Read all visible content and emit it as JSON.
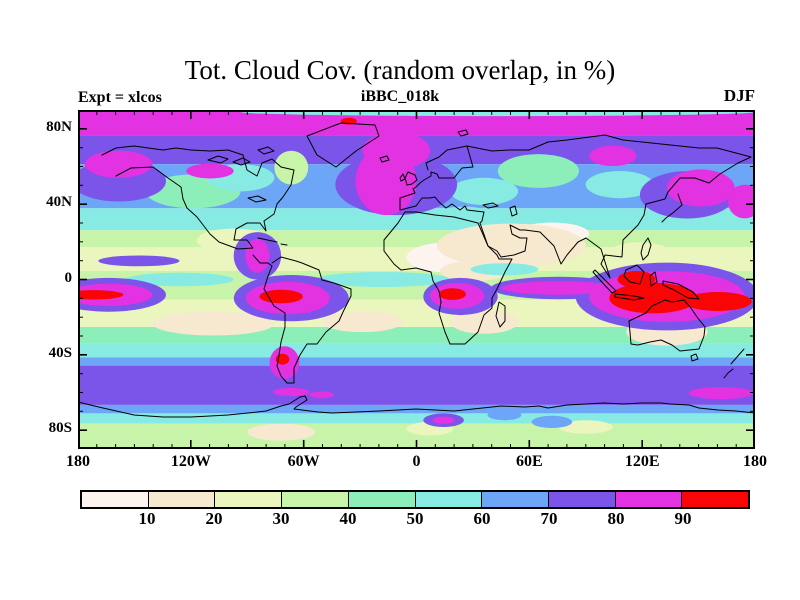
{
  "header": {
    "title": "Tot. Cloud Cov. (random overlap, in %)",
    "subtitle": "iBBC_018k",
    "experiment_label": "Expt = xlcos",
    "season_label": "DJF"
  },
  "chart_data": {
    "type": "heatmap",
    "subtype": "filled-contour global map (equirectangular lat-lon)",
    "title": "Tot. Cloud Cov. (random overlap, in %)",
    "run_id": "iBBC_018k",
    "experiment": "Expt = xlcos",
    "season": "DJF",
    "units": "%",
    "lon_range": [
      -180,
      180
    ],
    "lat_range": [
      -90,
      90
    ],
    "axes": {
      "lon_labels": [
        {
          "text": "180",
          "lon": -180
        },
        {
          "text": "120W",
          "lon": -120
        },
        {
          "text": "60W",
          "lon": -60
        },
        {
          "text": "0",
          "lon": 0
        },
        {
          "text": "60E",
          "lon": 60
        },
        {
          "text": "120E",
          "lon": 120
        },
        {
          "text": "180",
          "lon": 180
        }
      ],
      "lat_labels": [
        {
          "text": "80N",
          "lat": 80
        },
        {
          "text": "40N",
          "lat": 40
        },
        {
          "text": "0",
          "lat": 0
        },
        {
          "text": "40S",
          "lat": -40
        },
        {
          "text": "80S",
          "lat": -80
        }
      ],
      "minor_tick_step_deg": 10,
      "lon_major_step_deg": 60,
      "lat_major_step_deg": 40
    },
    "colorbar": {
      "tick_labels": [
        "10",
        "20",
        "30",
        "40",
        "50",
        "60",
        "70",
        "80",
        "90"
      ],
      "levels_pct": [
        0,
        10,
        20,
        30,
        40,
        50,
        60,
        70,
        80,
        90,
        100
      ],
      "colors": [
        "#fdf4ef",
        "#f6e9cf",
        "#eaf6bd",
        "#c8f4aa",
        "#8cefb9",
        "#87ebe3",
        "#6da6f6",
        "#7b54ea",
        "#e232e2",
        "#fa0505"
      ]
    },
    "field": {
      "description": "DJF total cloud cover (%): >80% (magenta) polar cap band near 80N and over N Atlantic/NW Pacific storm tracks; 70-80% (purple) band over the Southern Ocean 45-65S; >90% (red) convective cores over the Amazon, Congo, Maritime Continent/west Pacific and at the dateline on the equator, plus Patagonia; <20% (cream/white) over the Sahara, Arabia, central Asia and the subtropical oceans.",
      "bands": [
        [
          0.0,
          0.075,
          8
        ],
        [
          0.075,
          0.16,
          7
        ],
        [
          0.16,
          0.29,
          6
        ],
        [
          0.29,
          0.355,
          5
        ],
        [
          0.355,
          0.405,
          3
        ],
        [
          0.405,
          0.475,
          2
        ],
        [
          0.475,
          0.56,
          3
        ],
        [
          0.56,
          0.64,
          2
        ],
        [
          0.64,
          0.69,
          4
        ],
        [
          0.69,
          0.73,
          5
        ],
        [
          0.73,
          0.755,
          6
        ],
        [
          0.755,
          0.87,
          7
        ],
        [
          0.87,
          0.895,
          6
        ],
        [
          0.895,
          0.925,
          5
        ],
        [
          0.925,
          1.0,
          3
        ]
      ],
      "blobs": [
        [
          0.23,
          0.385,
          0.055,
          0.035,
          2
        ],
        [
          0.64,
          0.4,
          0.11,
          0.065,
          1
        ],
        [
          0.7,
          0.365,
          0.055,
          0.033,
          0
        ],
        [
          0.55,
          0.435,
          0.065,
          0.045,
          0
        ],
        [
          0.585,
          0.475,
          0.05,
          0.03,
          1
        ],
        [
          0.83,
          0.43,
          0.05,
          0.04,
          2
        ],
        [
          0.2,
          0.63,
          0.09,
          0.035,
          1
        ],
        [
          0.42,
          0.625,
          0.06,
          0.03,
          1
        ],
        [
          0.6,
          0.625,
          0.05,
          0.035,
          1
        ],
        [
          0.87,
          0.655,
          0.06,
          0.04,
          1
        ],
        [
          0.3,
          0.95,
          0.05,
          0.025,
          1
        ],
        [
          0.52,
          0.94,
          0.035,
          0.02,
          2
        ],
        [
          0.75,
          0.935,
          0.04,
          0.02,
          2
        ],
        [
          0.17,
          0.24,
          0.07,
          0.05,
          4
        ],
        [
          0.68,
          0.18,
          0.06,
          0.05,
          4
        ],
        [
          0.315,
          0.17,
          0.025,
          0.05,
          3
        ],
        [
          0.62,
          0.006,
          0.38,
          0.012,
          5
        ],
        [
          0.24,
          0.2,
          0.05,
          0.04,
          5
        ],
        [
          0.6,
          0.24,
          0.05,
          0.04,
          5
        ],
        [
          0.8,
          0.22,
          0.05,
          0.04,
          5
        ],
        [
          0.57,
          0.31,
          0.04,
          0.025,
          5
        ],
        [
          0.45,
          0.5,
          0.1,
          0.022,
          5
        ],
        [
          0.15,
          0.5,
          0.08,
          0.02,
          5
        ],
        [
          0.63,
          0.47,
          0.05,
          0.018,
          5
        ],
        [
          0.7,
          0.92,
          0.03,
          0.018,
          6
        ],
        [
          0.63,
          0.9,
          0.025,
          0.015,
          6
        ],
        [
          0.47,
          0.22,
          0.09,
          0.09,
          7
        ],
        [
          0.06,
          0.21,
          0.07,
          0.06,
          7
        ],
        [
          0.9,
          0.25,
          0.07,
          0.07,
          7
        ],
        [
          0.265,
          0.43,
          0.035,
          0.07,
          7
        ],
        [
          0.09,
          0.445,
          0.06,
          0.016,
          7
        ],
        [
          0.045,
          0.545,
          0.085,
          0.05,
          7
        ],
        [
          0.315,
          0.555,
          0.085,
          0.068,
          7
        ],
        [
          0.565,
          0.55,
          0.055,
          0.055,
          7
        ],
        [
          0.71,
          0.525,
          0.1,
          0.033,
          7
        ],
        [
          0.87,
          0.55,
          0.135,
          0.1,
          7
        ],
        [
          0.54,
          0.915,
          0.03,
          0.02,
          7
        ],
        [
          0.455,
          0.21,
          0.045,
          0.1,
          8
        ],
        [
          0.47,
          0.12,
          0.05,
          0.055,
          8
        ],
        [
          0.06,
          0.16,
          0.05,
          0.04,
          8
        ],
        [
          0.195,
          0.18,
          0.035,
          0.022,
          8
        ],
        [
          0.79,
          0.135,
          0.035,
          0.03,
          8
        ],
        [
          0.92,
          0.23,
          0.05,
          0.055,
          8
        ],
        [
          0.985,
          0.27,
          0.025,
          0.05,
          8
        ],
        [
          0.265,
          0.43,
          0.018,
          0.05,
          8
        ],
        [
          0.045,
          0.545,
          0.065,
          0.033,
          8
        ],
        [
          0.31,
          0.555,
          0.062,
          0.048,
          8
        ],
        [
          0.56,
          0.548,
          0.04,
          0.038,
          8
        ],
        [
          0.71,
          0.525,
          0.085,
          0.02,
          8
        ],
        [
          0.87,
          0.55,
          0.115,
          0.075,
          8
        ],
        [
          0.305,
          0.745,
          0.022,
          0.048,
          8
        ],
        [
          0.315,
          0.832,
          0.027,
          0.012,
          8
        ],
        [
          0.36,
          0.84,
          0.018,
          0.01,
          8
        ],
        [
          0.95,
          0.835,
          0.048,
          0.018,
          8
        ],
        [
          0.54,
          0.915,
          0.016,
          0.011,
          8
        ],
        [
          0.4,
          0.033,
          0.012,
          0.01,
          9
        ],
        [
          0.022,
          0.545,
          0.045,
          0.014,
          9
        ],
        [
          0.3,
          0.55,
          0.032,
          0.02,
          9
        ],
        [
          0.553,
          0.543,
          0.02,
          0.017,
          9
        ],
        [
          0.85,
          0.555,
          0.065,
          0.045,
          9
        ],
        [
          0.945,
          0.565,
          0.05,
          0.028,
          9
        ],
        [
          0.825,
          0.5,
          0.028,
          0.025,
          9
        ],
        [
          0.302,
          0.735,
          0.01,
          0.016,
          9
        ]
      ]
    },
    "coastlines": {
      "stroke": "#000000",
      "paths": [
        "M24,45 L38,38 56,36 85,40 98,38 113,40 132,41 150,40 165,45 169,60 179,66 184,53 194,49 203,57 216,60 213,75 205,87 199,94 196,104 186,111 188,121 182,113 169,113 158,119 156,130 169,130 175,138 160,139 141,132 132,124 119,107 109,98 105,89 103,77 90,68 75,57 53,58 38,66",
        "M175,145 L182,153 190,153 194,156 190,166 186,179 196,196 207,203 207,217 203,232 201,245 199,256 203,266 209,273 216,273 216,258 222,245 229,234 239,234 248,222 261,211 265,202 273,186 273,179 256,173 244,170 241,160 224,153 218,151 203,147 194,153",
        "M229,26 L263,13 297,15 301,26 278,41 258,57 239,45 Z",
        "M350,60 L348,53 361,47 369,40 389,36 399,38 414,41 432,40 451,40 470,32 489,30 527,25 545,30 583,34 621,38 639,38 658,43 673,47 660,53 642,64 631,73 617,68 602,68 590,82 587,89 568,94 566,105 560,115 545,130 544,147 527,145 523,154 532,168 523,139 508,128 500,132 489,145 483,154 476,136 466,126 462,122 447,120 442,120 432,115 434,124 442,128 449,128 447,141 436,145 423,147 419,141 410,136 402,113 404,111 406,102 389,100 387,96 382,100 374,94 368,98 361,92 357,87 352,88 344,88 338,96 322,100 322,88 337,83 335,79 338,77 342,73 346,70 353,66 353,62 359,64 361,68 376,68 384,58 395,57 389,36",
        "M327,102 L320,113 306,130 306,141 316,154 323,160 338,158 353,162 355,171 361,181 363,192 361,203 367,222 372,234 387,234 400,222 406,205 414,198 414,188 419,179 427,162 434,149 421,149 419,145 410,136 400,113 376,107 357,105 338,102 Z",
        "M329,75 L327,68 330,62 337,65 339,70 334,74 Z",
        "M322,68 L325,64 327,69 323,71 Z",
        "M302,48 L309,46 311,50 304,52 Z",
        "M380,22 L388,20 390,24 383,26 Z",
        "M600,84 L604,95 596,102 588,108 584,112",
        "M517,160 L527,170 538,181 534,183 522,170 515,162 Z",
        "M537,184 L556,186 566,188 556,190 537,187 Z",
        "M548,160 L559,155 566,162 562,174 552,172 546,166 Z",
        "M572,166 L577,162 579,172 573,176 Z",
        "M585,171 L600,174 615,182 621,189 610,188 596,180 585,175 Z",
        "M565,135 L570,128 573,135 570,145 565,150 563,143 Z",
        "M551,211 L553,234 560,235 572,232 583,230 594,235 602,241 621,239 626,226 627,217 619,207 613,198 606,190 594,192 587,190 574,196 568,203 Z",
        "M613,246 L618,244 620,249 614,251 Z",
        "M653,254 L659,247 666,239 M655,259 L650,263 646,268",
        "M421,192 L427,196 427,211 422,217 418,206 Z",
        "M180,128 L199,132 M203,134 L209,135",
        "M170,88 L180,86 188,90 178,92 Z",
        "M405,95 L415,93 420,96 410,98 Z",
        "M432,98 L437,96 439,104 434,106 Z",
        "M130,50 L140,46 150,49 143,53 Z",
        "M155,52 L165,48 172,52 163,55 Z",
        "M180,40 L190,37 196,41 186,44 Z",
        "M0,292 L25,298 56,305 85,307 113,307 132,306 150,305 170,303 188,301 203,296 211,294 222,287 227,286 229,290 218,297 216,299 240,302 254,303 278,302 301,301 320,300 338,299 357,300 376,301 395,299 414,297 423,296 447,297 461,296 470,298 489,295 508,294 526,293 545,294 564,293 583,293 592,294 611,295 621,298 640,300 658,301 677,303"
      ]
    }
  }
}
